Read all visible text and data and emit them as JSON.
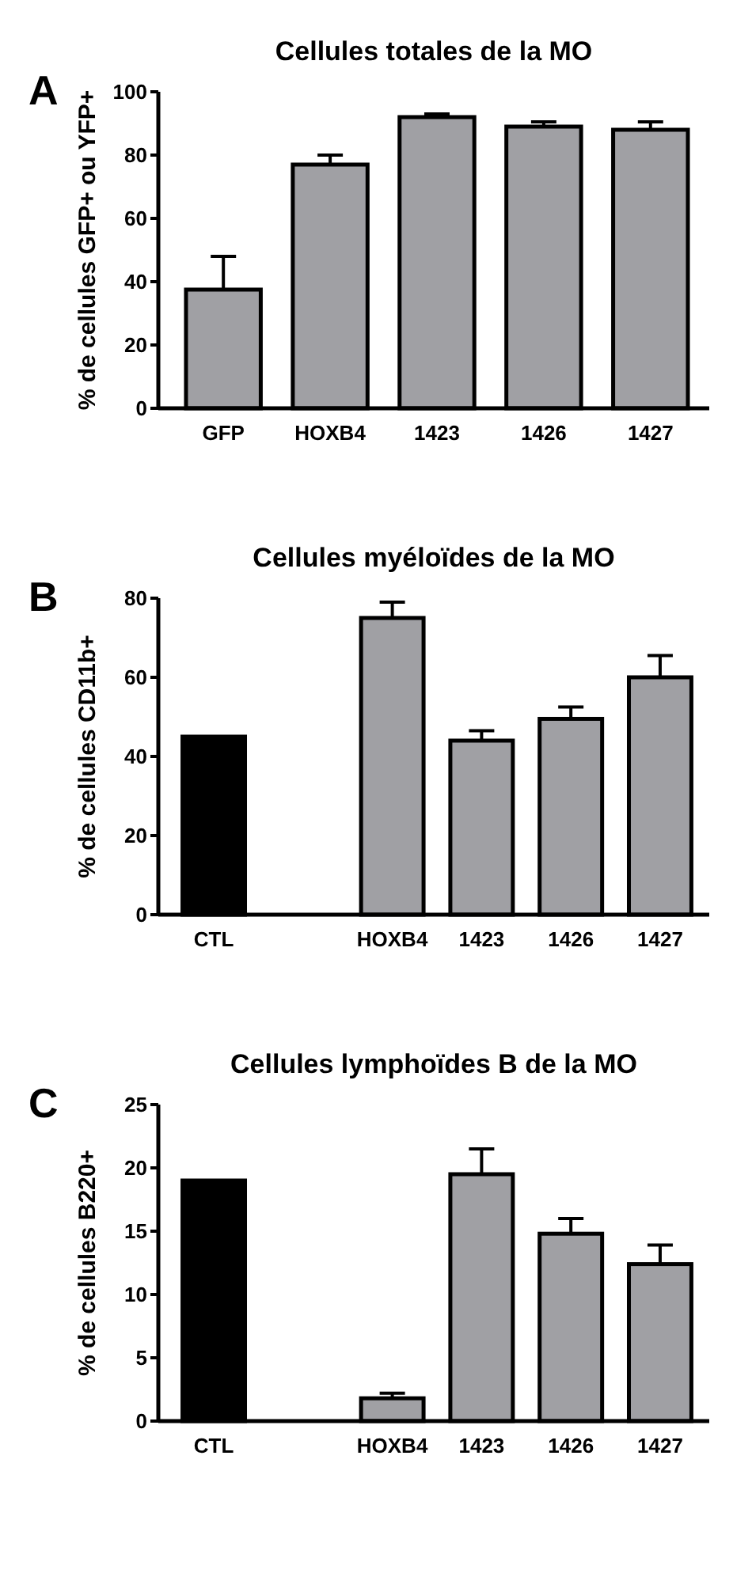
{
  "chart_data": [
    {
      "type": "bar",
      "title": "Cellules  totales  de la MO",
      "ylabel": "% de cellules GFP+ ou YFP+",
      "annotations": [
        "A"
      ],
      "categories": [
        "GFP",
        "HOXB4",
        "1423",
        "1426",
        "1427"
      ],
      "values": [
        37.5,
        77,
        92,
        89,
        88
      ],
      "errors": [
        10.5,
        3,
        1,
        1.5,
        2.5
      ],
      "colors": [
        "#a0a0a4",
        "#a0a0a4",
        "#a0a0a4",
        "#a0a0a4",
        "#a0a0a4"
      ],
      "ylim": [
        0,
        100
      ],
      "yticks": [
        0,
        20,
        40,
        60,
        80,
        100
      ]
    },
    {
      "type": "bar",
      "title": "Cellules myéloïdes de la MO",
      "ylabel": "% de cellules CD11b+",
      "annotations": [
        "B"
      ],
      "categories": [
        "CTL",
        null,
        "HOXB4",
        "1423",
        "1426",
        "1427"
      ],
      "values": [
        45,
        null,
        75,
        44,
        49.5,
        60
      ],
      "errors": [
        null,
        null,
        4,
        2.5,
        3,
        5.5
      ],
      "colors": [
        "#000000",
        null,
        "#a0a0a4",
        "#a0a0a4",
        "#a0a0a4",
        "#a0a0a4"
      ],
      "ylim": [
        0,
        80
      ],
      "yticks": [
        0,
        20,
        40,
        60,
        80
      ]
    },
    {
      "type": "bar",
      "title": "Cellules lymphoïdes B de la MO",
      "ylabel": "% de cellules B220+",
      "annotations": [
        "C"
      ],
      "categories": [
        "CTL",
        null,
        "HOXB4",
        "1423",
        "1426",
        "1427"
      ],
      "values": [
        19,
        null,
        1.8,
        19.5,
        14.8,
        12.4
      ],
      "errors": [
        null,
        null,
        0.4,
        2,
        1.2,
        1.5
      ],
      "colors": [
        "#000000",
        null,
        "#a0a0a4",
        "#a0a0a4",
        "#a0a0a4",
        "#a0a0a4"
      ],
      "ylim": [
        0,
        25
      ],
      "yticks": [
        0,
        5,
        10,
        15,
        20,
        25
      ]
    }
  ]
}
